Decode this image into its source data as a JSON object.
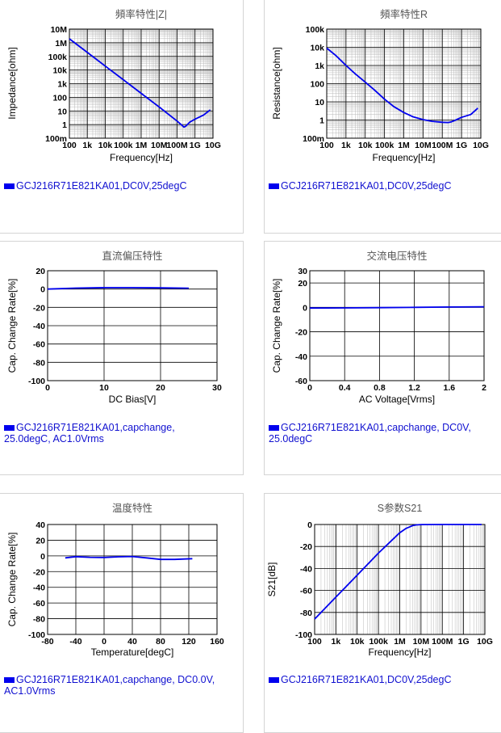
{
  "chart_data": [
    {
      "type": "line",
      "title": "頻率特性|Z|",
      "xlabel": "Frequency[Hz]",
      "ylabel": "Impedance[ohm]",
      "xscale": "log",
      "yscale": "log",
      "xlim": [
        100,
        10000000000
      ],
      "ylim": [
        0.1,
        10000000
      ],
      "xtick_values": [
        100,
        1000,
        10000,
        100000,
        1000000,
        10000000,
        100000000,
        1000000000,
        10000000000
      ],
      "xtick_labels": [
        "100",
        "1k",
        "10k",
        "100k",
        "1M",
        "10M",
        "100M",
        "1G",
        "10G"
      ],
      "ytick_values": [
        0.1,
        1,
        10,
        100,
        1000,
        10000,
        100000,
        1000000,
        10000000
      ],
      "ytick_labels": [
        "100m",
        "1",
        "10",
        "100",
        "1k",
        "10k",
        "100k",
        "1M",
        "10M"
      ],
      "grid": true,
      "series": [
        {
          "color": "#0000ee",
          "x": [
            100,
            1000,
            10000,
            100000,
            1000000,
            10000000,
            100000000,
            200000000,
            242000000,
            300000000,
            500000000,
            1000000000,
            3000000000,
            7000000000
          ],
          "y": [
            1940000,
            194000,
            19400,
            1940,
            194,
            19.4,
            1.8,
            0.82,
            0.65,
            0.75,
            1.5,
            2.5,
            5,
            12
          ]
        }
      ],
      "legend": "GCJ216R71E821KA01,DC0V,25degC"
    },
    {
      "type": "line",
      "title": "頻率特性R",
      "xlabel": "Frequency[Hz]",
      "ylabel": "Resistance[ohm]",
      "xscale": "log",
      "yscale": "log",
      "xlim": [
        100,
        10000000000
      ],
      "ylim": [
        0.1,
        100000
      ],
      "xtick_values": [
        100,
        1000,
        10000,
        100000,
        1000000,
        10000000,
        100000000,
        1000000000,
        10000000000
      ],
      "xtick_labels": [
        "100",
        "1k",
        "10k",
        "100k",
        "1M",
        "10M",
        "100M",
        "1G",
        "10G"
      ],
      "ytick_values": [
        0.1,
        1,
        10,
        100,
        1000,
        10000,
        100000
      ],
      "ytick_labels": [
        "100m",
        "1",
        "10",
        "100",
        "1k",
        "10k",
        "100k"
      ],
      "grid": true,
      "series": [
        {
          "color": "#0000ee",
          "x": [
            100,
            300,
            1000,
            3000,
            10000,
            30000,
            100000,
            300000,
            1000000,
            3000000,
            10000000,
            30000000,
            100000000,
            200000000,
            300000000,
            500000000,
            1000000000,
            3000000000,
            7000000000
          ],
          "y": [
            9000,
            3500,
            1000,
            350,
            120,
            45,
            14,
            5.5,
            2.6,
            1.5,
            1.05,
            0.85,
            0.75,
            0.73,
            0.8,
            1.0,
            1.4,
            2.0,
            4.5
          ]
        }
      ],
      "legend": "GCJ216R71E821KA01,DC0V,25degC"
    },
    {
      "type": "line",
      "title": "直流偏压特性",
      "xlabel": "DC Bias[V]",
      "ylabel": "Cap. Change Rate[%]",
      "xlim": [
        0,
        30
      ],
      "ylim": [
        -100,
        20
      ],
      "xtick_values": [
        0,
        10,
        20,
        30
      ],
      "xtick_labels": [
        "0",
        "10",
        "20",
        "30"
      ],
      "ytick_values": [
        20,
        0,
        -20,
        -40,
        -60,
        -80,
        -100
      ],
      "ytick_labels": [
        "20",
        "0",
        "-20",
        "-40",
        "-60",
        "-80",
        "-100"
      ],
      "grid": true,
      "series": [
        {
          "color": "#0000ee",
          "x": [
            0,
            5,
            10,
            15,
            20,
            25
          ],
          "y": [
            0,
            1,
            1.6,
            1.6,
            1.3,
            0.9
          ]
        }
      ],
      "legend": "GCJ216R71E821KA01,capchange, 25.0degC, AC1.0Vrms"
    },
    {
      "type": "line",
      "title": "交流电压特性",
      "xlabel": "AC Voltage[Vrms]",
      "ylabel": "Cap. Change Rate[%]",
      "xlim": [
        0,
        2
      ],
      "ylim": [
        -60,
        30
      ],
      "xtick_values": [
        0,
        0.4,
        0.8,
        1.2,
        1.6,
        2
      ],
      "xtick_labels": [
        "0",
        "0.4",
        "0.8",
        "1.2",
        "1.6",
        "2"
      ],
      "ytick_values": [
        30,
        20,
        0,
        -20,
        -40,
        -60
      ],
      "ytick_labels": [
        "30",
        "20",
        "0",
        "-20",
        "-40",
        "-60"
      ],
      "grid": true,
      "series": [
        {
          "color": "#0000ee",
          "x": [
            0,
            0.4,
            0.8,
            1.2,
            1.6,
            2
          ],
          "y": [
            -0.6,
            -0.45,
            -0.25,
            0,
            0.3,
            0.5
          ]
        }
      ],
      "legend": "GCJ216R71E821KA01,capchange, DC0V, 25.0degC"
    },
    {
      "type": "line",
      "title": "温度特性",
      "xlabel": "Temperature[degC]",
      "ylabel": "Cap. Change Rate[%]",
      "xlim": [
        -80,
        160
      ],
      "ylim": [
        -100,
        40
      ],
      "xtick_values": [
        -80,
        -40,
        0,
        40,
        80,
        120,
        160
      ],
      "xtick_labels": [
        "-80",
        "-40",
        "0",
        "40",
        "80",
        "120",
        "160"
      ],
      "ytick_values": [
        40,
        20,
        0,
        -20,
        -40,
        -60,
        -80,
        -100
      ],
      "ytick_labels": [
        "40",
        "20",
        "0",
        "-20",
        "-40",
        "-60",
        "-80",
        "-100"
      ],
      "grid": true,
      "series": [
        {
          "color": "#0000ee",
          "x": [
            -55,
            -40,
            -20,
            0,
            20,
            40,
            60,
            80,
            100,
            125
          ],
          "y": [
            -2.5,
            -1,
            -1.8,
            -2,
            -1.2,
            -0.8,
            -2.5,
            -4.5,
            -4.5,
            -3.5
          ]
        }
      ],
      "legend": "GCJ216R71E821KA01,capchange, DC0.0V, AC1.0Vrms"
    },
    {
      "type": "line",
      "title": "S参数S21",
      "xlabel": "Frequency[Hz]",
      "ylabel": "S21[dB]",
      "xscale": "log",
      "xlim": [
        100,
        10000000000
      ],
      "ylim": [
        -100,
        0
      ],
      "xtick_values": [
        100,
        1000,
        10000,
        100000,
        1000000,
        10000000,
        100000000,
        1000000000,
        10000000000
      ],
      "xtick_labels": [
        "100",
        "1k",
        "10k",
        "100k",
        "1M",
        "10M",
        "100M",
        "1G",
        "10G"
      ],
      "ytick_values": [
        0,
        -20,
        -40,
        -60,
        -80,
        -100
      ],
      "ytick_labels": [
        "0",
        "-20",
        "-40",
        "-60",
        "-80",
        "-100"
      ],
      "grid": true,
      "series": [
        {
          "color": "#0000ee",
          "x": [
            100,
            1000,
            10000,
            100000,
            1000000,
            2000000,
            4000000,
            6000000,
            10000000,
            100000000,
            1000000000,
            7000000000
          ],
          "y": [
            -86,
            -66,
            -46,
            -26,
            -7.5,
            -3.5,
            -1,
            -0.4,
            -0.1,
            0,
            0,
            0
          ]
        }
      ],
      "legend": "GCJ216R71E821KA01,DC0V,25degC"
    }
  ]
}
